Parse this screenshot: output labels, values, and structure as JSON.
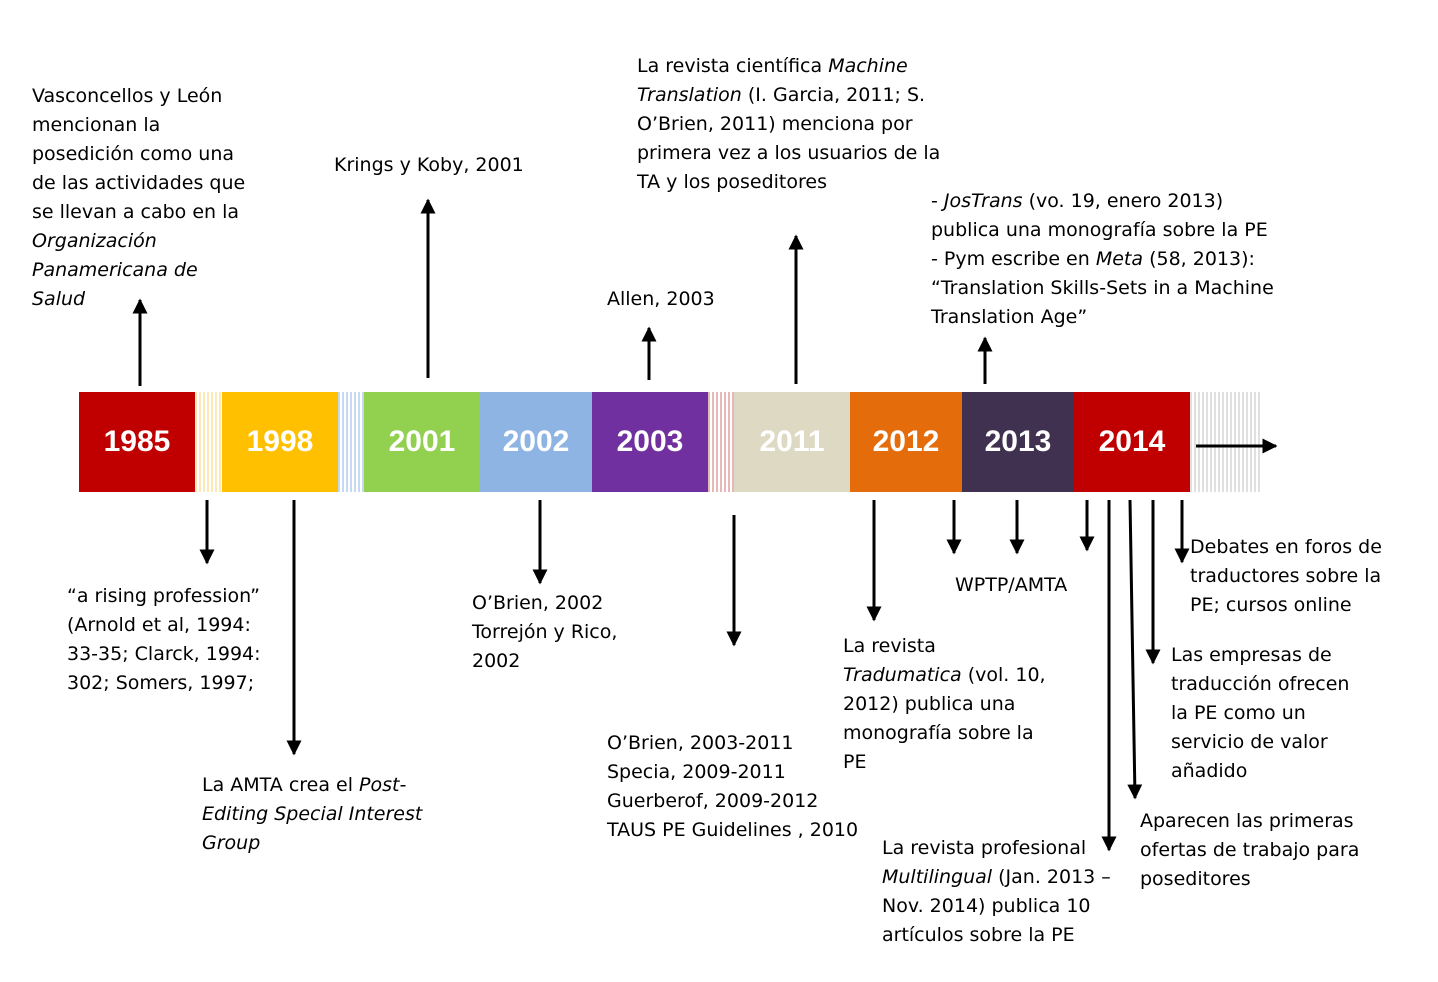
{
  "timeline": {
    "segments": [
      {
        "year": "1985",
        "color": "#c00000"
      },
      {
        "year": "1998",
        "color": "#ffc000"
      },
      {
        "year": "2001",
        "color": "#92d050"
      },
      {
        "year": "2002",
        "color": "#8db4e2"
      },
      {
        "year": "2003",
        "color": "#7030a0"
      },
      {
        "year": "2011",
        "color": "#ddd9c3"
      },
      {
        "year": "2012",
        "color": "#e46c0a"
      },
      {
        "year": "2013",
        "color": "#403151"
      },
      {
        "year": "2014",
        "color": "#c00000"
      }
    ]
  },
  "above": {
    "e1985": [
      "Vasconcellos y León",
      "mencionan la",
      "posedición como una",
      "de las actividades que",
      "se llevan a cabo en la",
      "Organización",
      "Panamericana de",
      "Salud"
    ],
    "e2001": [
      "Krings y Koby, 2001"
    ],
    "e2003": [
      "Allen, 2003"
    ],
    "e2011_parts": [
      "La revista científica ",
      "Machine",
      "Translation",
      " (I. Garcia, 2011; S.",
      "O’Brien, 2011) menciona por",
      "primera vez a los usuarios de la",
      "TA y los poseditores"
    ],
    "e2013_parts": [
      "- ",
      "JosTrans",
      " (vo. 19, enero 2013)",
      "publica una monografía sobre la PE",
      "- Pym escribe en ",
      "Meta",
      " (58, 2013):",
      "“Translation Skills-Sets in a Machine",
      "Translation Age”"
    ]
  },
  "below": {
    "rising": [
      "“a rising profession”",
      "(Arnold et al, 1994:",
      "33-35; Clarck, 1994:",
      "302; Somers, 1997;"
    ],
    "amta_parts": [
      "La AMTA crea el ",
      "Post-",
      "Editing Special Interest",
      "Group"
    ],
    "obrien2002": [
      "O’Brien, 2002",
      "Torrejón y Rico,",
      "2002"
    ],
    "obrien2003": [
      "O’Brien, 2003-2011",
      "Specia, 2009-2011",
      "Guerberof, 2009-2012",
      "TAUS PE Guidelines , 2010"
    ],
    "tradumatica_parts": [
      "La revista",
      "Tradumatica",
      " (vol. 10,",
      "2012) publica una",
      "monografía sobre la",
      "PE"
    ],
    "wptp": [
      "WPTP/AMTA"
    ],
    "multilingual_parts": [
      "La revista profesional",
      "Multilingual",
      " (Jan. 2013 –",
      "Nov. 2014) publica 10",
      "artículos sobre la PE"
    ],
    "debates": [
      "Debates en foros de",
      "traductores sobre la",
      "PE; cursos online"
    ],
    "empresas": [
      "Las empresas de",
      "traducción ofrecen",
      "la PE como un",
      "servicio de valor",
      "añadido"
    ],
    "ofertas": [
      "Aparecen las primeras",
      "ofertas de trabajo para",
      "poseditores"
    ]
  }
}
